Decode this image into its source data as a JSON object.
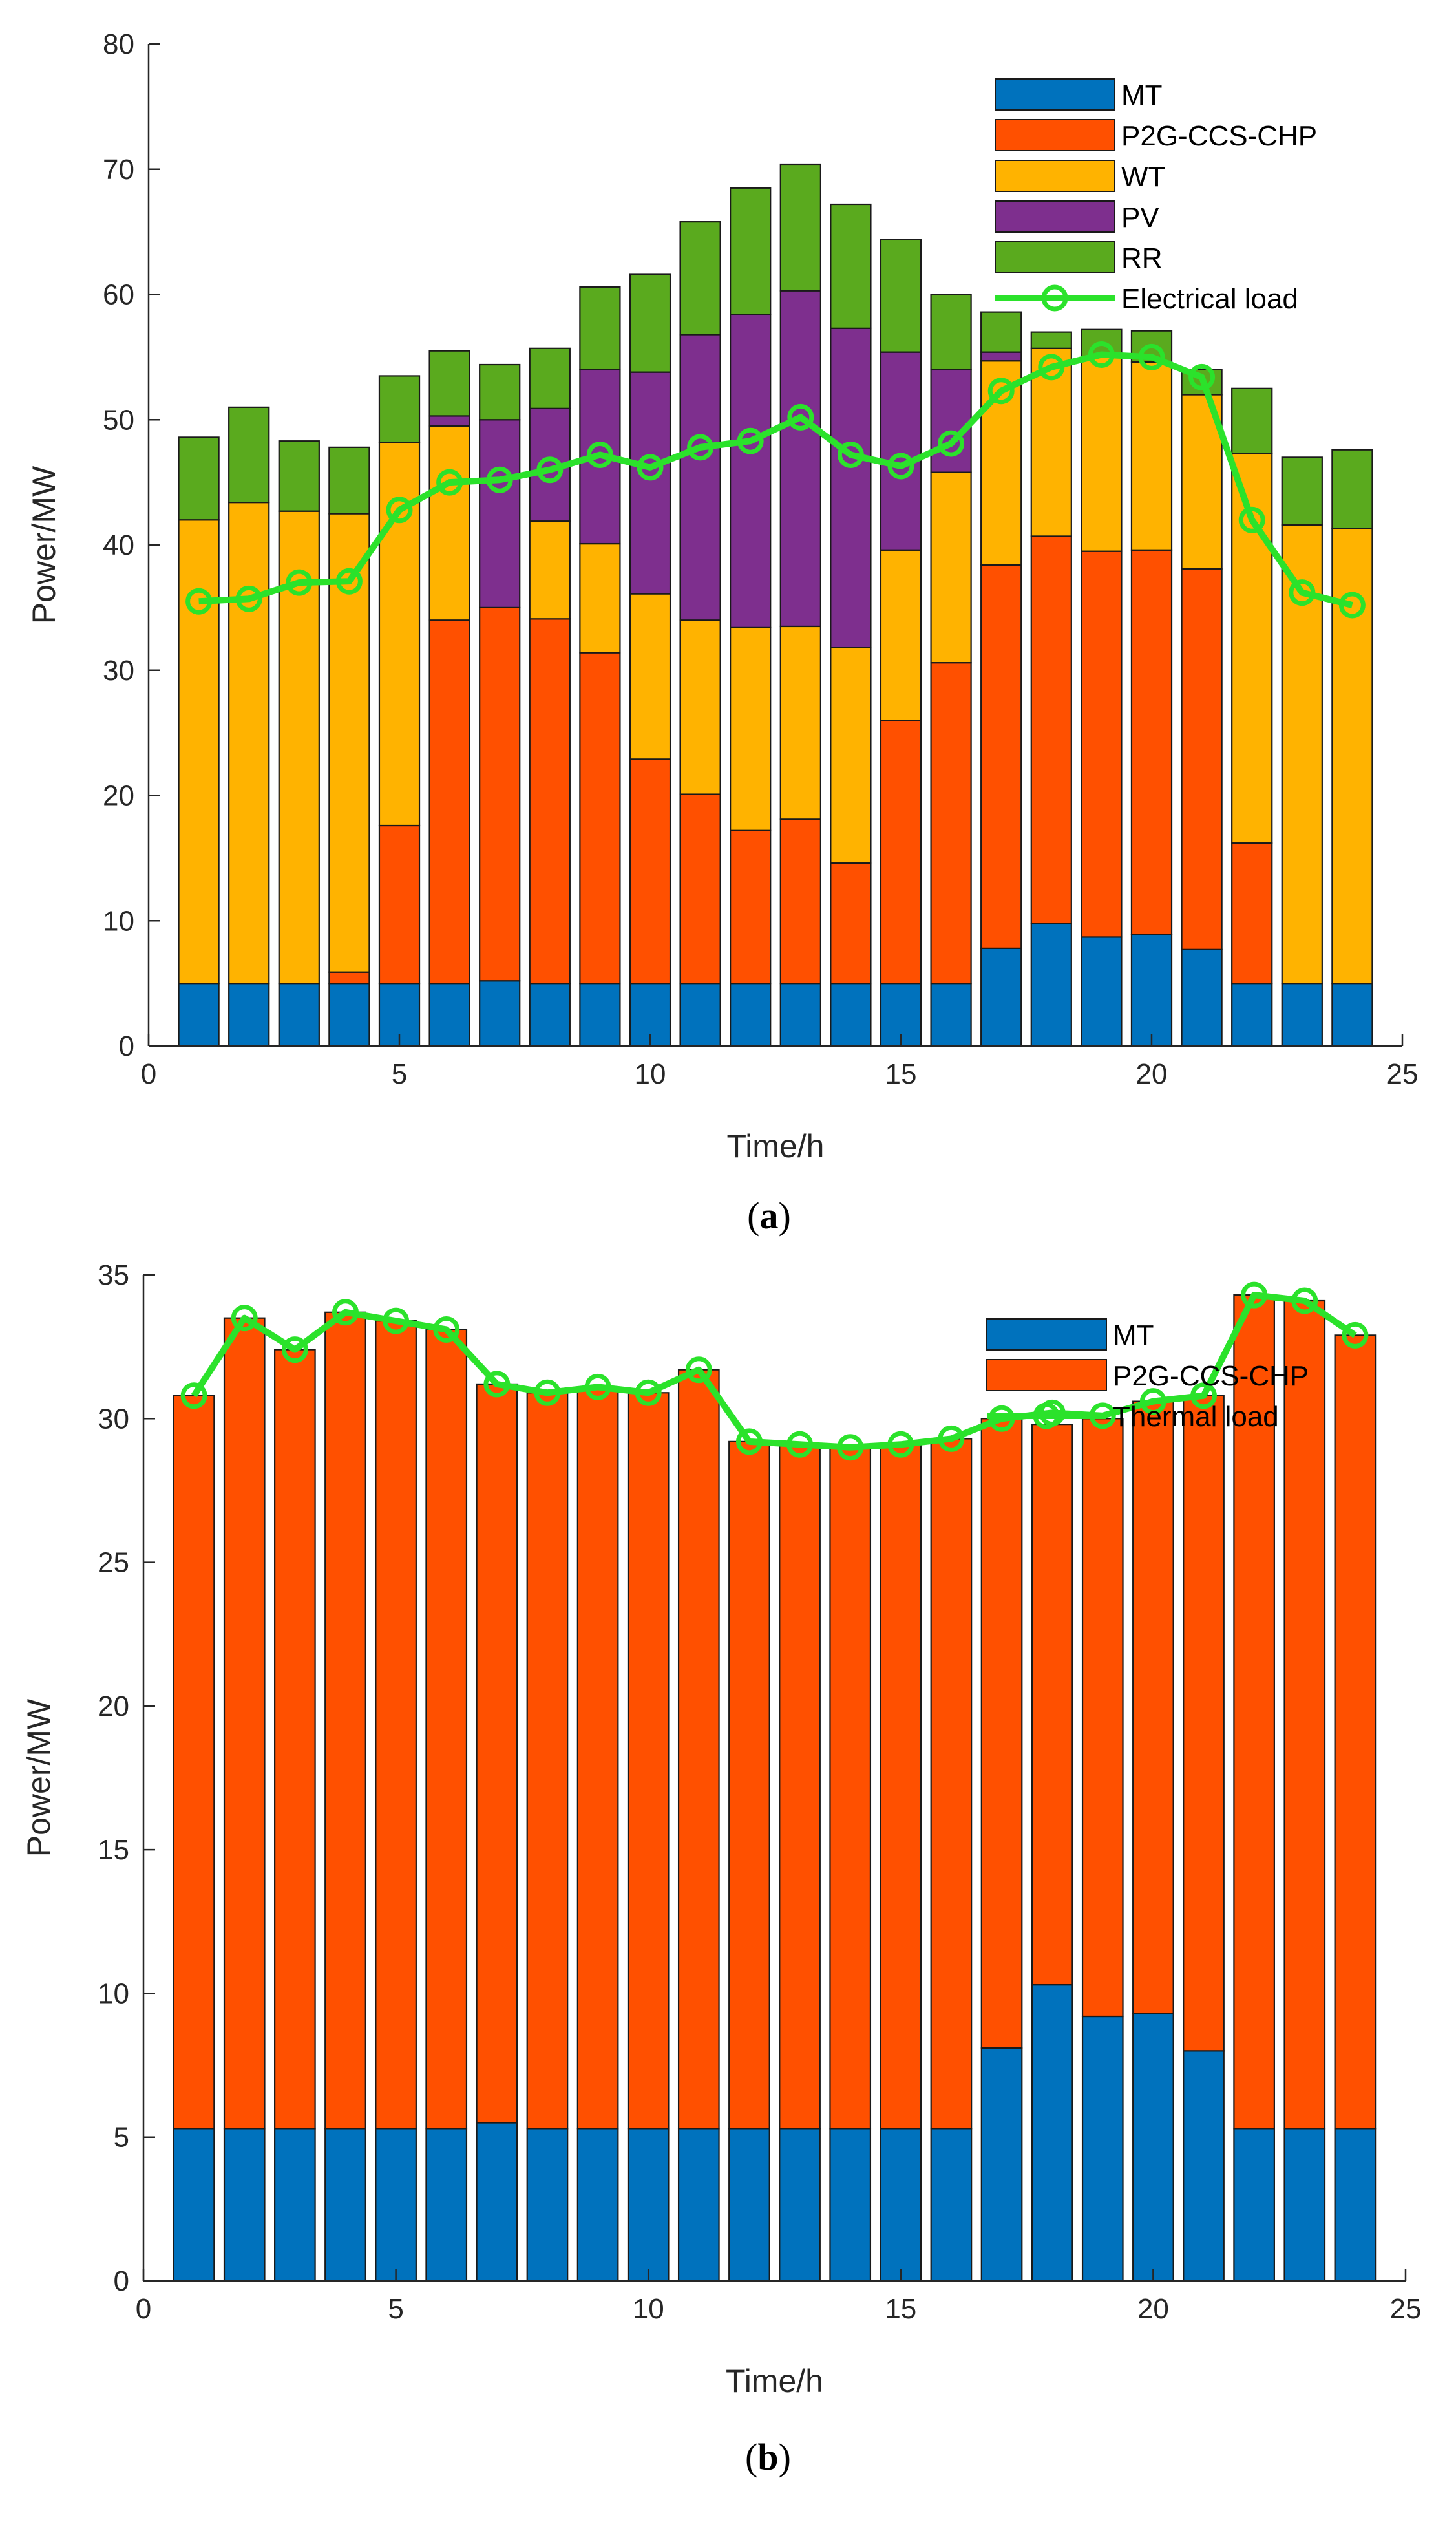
{
  "chart_data": [
    {
      "type": "bar",
      "stacked": true,
      "caption": {
        "open": "(",
        "letter": "a",
        "close": ")"
      },
      "xlabel": "Time/h",
      "ylabel": "Power/MW",
      "xlim": [
        0,
        25
      ],
      "ylim": [
        0,
        80
      ],
      "xticks": [
        0,
        5,
        10,
        15,
        20,
        25
      ],
      "yticks": [
        0,
        10,
        20,
        30,
        40,
        50,
        60,
        70,
        80
      ],
      "grid": false,
      "legend_position": "top-right",
      "x": [
        1,
        2,
        3,
        4,
        5,
        6,
        7,
        8,
        9,
        10,
        11,
        12,
        13,
        14,
        15,
        16,
        17,
        18,
        19,
        20,
        21,
        22,
        23,
        24
      ],
      "series": [
        {
          "name": "MT",
          "color": "#0072BD",
          "values": [
            5,
            5,
            5,
            5,
            5,
            5,
            5.2,
            5,
            5,
            5,
            5,
            5,
            5,
            5,
            5,
            5,
            7.8,
            9.8,
            8.7,
            8.9,
            7.7,
            5,
            5,
            5
          ]
        },
        {
          "name": "P2G-CCS-CHP",
          "color": "#FF5000",
          "values": [
            0,
            0,
            0,
            0.9,
            12.6,
            29,
            29.8,
            29.1,
            26.4,
            17.9,
            15.1,
            12.2,
            13.1,
            9.6,
            21,
            25.6,
            30.6,
            30.9,
            30.8,
            30.7,
            30.4,
            11.2,
            0,
            0
          ]
        },
        {
          "name": "WT",
          "color": "#FFB300",
          "values": [
            37,
            38.4,
            37.7,
            36.6,
            30.6,
            15.5,
            0,
            7.8,
            8.7,
            13.2,
            13.9,
            16.2,
            15.4,
            17.2,
            13.6,
            15.2,
            16.3,
            15,
            15.5,
            15,
            13.9,
            31.1,
            36.6,
            36.3
          ]
        },
        {
          "name": "PV",
          "color": "#7E2F8E",
          "values": [
            0,
            0,
            0,
            0,
            0,
            0.8,
            15,
            9,
            13.9,
            17.7,
            22.8,
            25,
            26.8,
            25.5,
            15.8,
            8.2,
            0.7,
            0,
            0,
            0,
            0,
            0,
            0,
            0
          ]
        },
        {
          "name": "RR",
          "color": "#5AAA1E",
          "values": [
            6.6,
            7.6,
            5.6,
            5.3,
            5.3,
            5.2,
            4.4,
            4.8,
            6.6,
            7.8,
            9,
            10.1,
            10.1,
            9.9,
            9,
            6,
            3.2,
            1.3,
            2.2,
            2.5,
            2,
            5.2,
            5.4,
            6.3
          ]
        }
      ],
      "line": {
        "name": "Electrical load",
        "color": "#2BE22B",
        "values": [
          35.5,
          35.7,
          37,
          37.1,
          42.8,
          45,
          45.2,
          46,
          47.2,
          46.2,
          47.8,
          48.3,
          50.2,
          47.2,
          46.3,
          48.1,
          52.3,
          54.2,
          55.2,
          55,
          53.4,
          42,
          36.2,
          35.2
        ]
      }
    },
    {
      "type": "bar",
      "stacked": true,
      "caption": {
        "open": "(",
        "letter": "b",
        "close": ")"
      },
      "xlabel": "Time/h",
      "ylabel": "Power/MW",
      "xlim": [
        0,
        25
      ],
      "ylim": [
        0,
        35
      ],
      "xticks": [
        0,
        5,
        10,
        15,
        20,
        25
      ],
      "yticks": [
        0,
        5,
        10,
        15,
        20,
        25,
        30,
        35
      ],
      "grid": false,
      "legend_position": "top-right",
      "x": [
        1,
        2,
        3,
        4,
        5,
        6,
        7,
        8,
        9,
        10,
        11,
        12,
        13,
        14,
        15,
        16,
        17,
        18,
        19,
        20,
        21,
        22,
        23,
        24
      ],
      "series": [
        {
          "name": "MT",
          "color": "#0072BD",
          "values": [
            5.3,
            5.3,
            5.3,
            5.3,
            5.3,
            5.3,
            5.5,
            5.3,
            5.3,
            5.3,
            5.3,
            5.3,
            5.3,
            5.3,
            5.3,
            5.3,
            8.1,
            10.3,
            9.2,
            9.3,
            8,
            5.3,
            5.3,
            5.3
          ]
        },
        {
          "name": "P2G-CCS-CHP",
          "color": "#FF5000",
          "values": [
            25.5,
            28.2,
            27.1,
            28.4,
            28.1,
            27.8,
            25.7,
            25.6,
            25.8,
            25.6,
            26.4,
            23.9,
            23.8,
            23.7,
            23.8,
            24,
            21.9,
            19.5,
            20.8,
            21.3,
            22.8,
            29,
            28.8,
            27.6
          ]
        }
      ],
      "line": {
        "name": "Thermal load",
        "color": "#2BE22B",
        "values": [
          30.8,
          33.5,
          32.4,
          33.7,
          33.4,
          33.1,
          31.2,
          30.9,
          31.1,
          30.9,
          31.7,
          29.2,
          29.1,
          29,
          29.1,
          29.3,
          30,
          30.2,
          30.1,
          30.6,
          30.8,
          34.3,
          34.1,
          32.9
        ]
      }
    }
  ]
}
